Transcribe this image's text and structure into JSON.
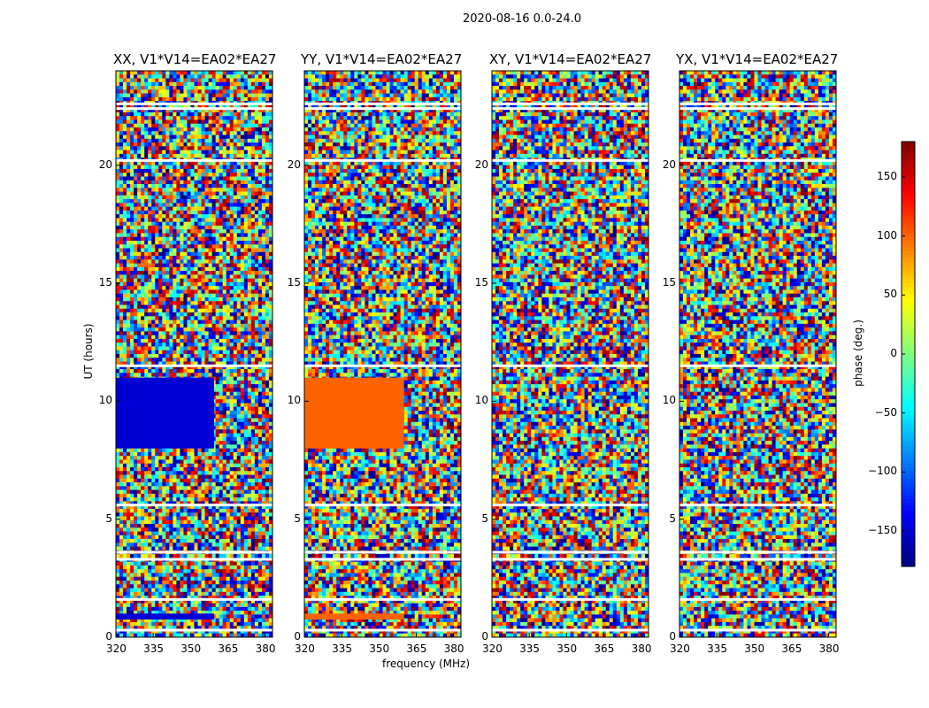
{
  "suptitle": "2020-08-16 0.0-24.0",
  "panels": [
    {
      "title": "XX, V1*V14=EA02*EA27"
    },
    {
      "title": "YY, V1*V14=EA02*EA27"
    },
    {
      "title": "XY, V1*V14=EA02*EA27"
    },
    {
      "title": "YX, V1*V14=EA02*EA27"
    }
  ],
  "xlabel": "frequency (MHz)",
  "ylabel": "UT (hours)",
  "colorbar_label": "phase (deg.)",
  "x_ticks": [
    "320",
    "335",
    "350",
    "365",
    "380"
  ],
  "y_ticks": [
    "0",
    "5",
    "10",
    "15",
    "20"
  ],
  "cbar_ticks": [
    "150",
    "100",
    "50",
    "0",
    "−50",
    "−100",
    "−150"
  ],
  "chart_data": {
    "type": "heatmap",
    "title": "2020-08-16 0.0-24.0",
    "panels": [
      "XX, V1*V14=EA02*EA27",
      "YY, V1*V14=EA02*EA27",
      "XY, V1*V14=EA02*EA27",
      "YX, V1*V14=EA02*EA27"
    ],
    "xlabel": "frequency (MHz)",
    "ylabel": "UT (hours)",
    "xlim": [
      320,
      383
    ],
    "ylim": [
      0,
      24
    ],
    "x_ticks": [
      320,
      335,
      350,
      365,
      380
    ],
    "y_ticks": [
      0,
      5,
      10,
      15,
      20
    ],
    "colorbar": {
      "label": "phase (deg.)",
      "range": [
        -180,
        180
      ],
      "ticks": [
        -150,
        -100,
        -50,
        0,
        50,
        100,
        150
      ],
      "colormap": "jet"
    },
    "flagged_ut_hours": [
      0.3,
      1.6,
      3.3,
      3.6,
      5.6,
      11.5,
      20.2,
      22.4,
      22.6
    ],
    "coherent_regions": [
      {
        "panel": "XX",
        "ut": [
          8.0,
          11.0
        ],
        "freq_mhz": [
          320,
          359.5
        ],
        "phase_deg": -150
      },
      {
        "panel": "XX",
        "ut": [
          0.75,
          1.0
        ],
        "freq_mhz": [
          320,
          359.5
        ],
        "phase_deg": -150
      },
      {
        "panel": "YY",
        "ut": [
          8.0,
          11.0
        ],
        "freq_mhz": [
          320,
          360
        ],
        "phase_deg": 100
      },
      {
        "panel": "YY",
        "ut": [
          0.75,
          1.0
        ],
        "freq_mhz": [
          320,
          360
        ],
        "phase_deg": 100
      }
    ]
  },
  "colors": {
    "background": "#ffffff",
    "axes": "#000000",
    "flag": "#ffffff"
  }
}
